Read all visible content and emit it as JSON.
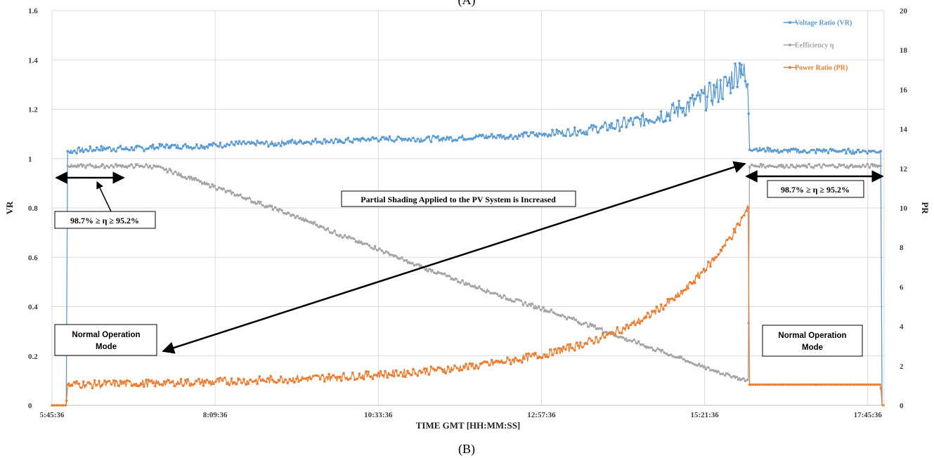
{
  "chart_data": {
    "type": "line",
    "caption_top": "(A)",
    "caption_bottom": "(B)",
    "xlabel": "TIME GMT [HH:MM:SS]",
    "ylabel_left": "VR",
    "ylabel_right": "PR",
    "x_ticks": [
      "5:45:36",
      "8:09:36",
      "10:33:36",
      "12:57:36",
      "15:21:36",
      "17:45:36"
    ],
    "x_tick_hours": [
      5.76,
      8.16,
      10.56,
      12.96,
      15.36,
      17.76
    ],
    "x_range_hours": [
      5.76,
      18.0
    ],
    "y_left_range": [
      0,
      1.6
    ],
    "y_left_ticks": [
      0,
      0.2,
      0.4,
      0.6,
      0.8,
      1,
      1.2,
      1.4,
      1.6
    ],
    "y_right_range": [
      0,
      20
    ],
    "y_right_ticks": [
      0,
      2,
      4,
      6,
      8,
      10,
      12,
      14,
      16,
      18,
      20
    ],
    "grid": true,
    "legend_position": "top-right",
    "series": [
      {
        "name": "Voltage Ratio (VR)",
        "axis": "left",
        "color": "#5b9bd5",
        "points": [
          [
            5.76,
            0
          ],
          [
            5.97,
            0
          ],
          [
            5.99,
            1.03
          ],
          [
            6.5,
            1.04
          ],
          [
            7.0,
            1.04
          ],
          [
            7.5,
            1.05
          ],
          [
            8.0,
            1.05
          ],
          [
            8.5,
            1.06
          ],
          [
            9.0,
            1.06
          ],
          [
            9.5,
            1.07
          ],
          [
            10.0,
            1.07
          ],
          [
            10.5,
            1.08
          ],
          [
            11.0,
            1.08
          ],
          [
            11.5,
            1.08
          ],
          [
            12.0,
            1.09
          ],
          [
            12.5,
            1.09
          ],
          [
            13.0,
            1.1
          ],
          [
            13.5,
            1.11
          ],
          [
            14.0,
            1.13
          ],
          [
            14.5,
            1.16
          ],
          [
            15.0,
            1.2
          ],
          [
            15.4,
            1.25
          ],
          [
            15.7,
            1.3
          ],
          [
            15.9,
            1.38
          ],
          [
            16.0,
            1.25
          ],
          [
            16.02,
            1.04
          ],
          [
            16.5,
            1.03
          ],
          [
            17.0,
            1.03
          ],
          [
            17.5,
            1.03
          ],
          [
            17.95,
            1.03
          ],
          [
            17.97,
            0
          ],
          [
            18.0,
            0
          ]
        ]
      },
      {
        "name": "Eefficiency η",
        "axis": "left",
        "color": "#a5a5a5",
        "points": [
          [
            5.99,
            0.97
          ],
          [
            6.5,
            0.97
          ],
          [
            7.0,
            0.97
          ],
          [
            7.2,
            0.97
          ],
          [
            7.5,
            0.95
          ],
          [
            8.0,
            0.9
          ],
          [
            8.5,
            0.85
          ],
          [
            9.0,
            0.8
          ],
          [
            9.5,
            0.75
          ],
          [
            10.0,
            0.69
          ],
          [
            10.5,
            0.64
          ],
          [
            11.0,
            0.58
          ],
          [
            11.5,
            0.53
          ],
          [
            12.0,
            0.48
          ],
          [
            12.5,
            0.43
          ],
          [
            13.0,
            0.39
          ],
          [
            13.5,
            0.34
          ],
          [
            14.0,
            0.29
          ],
          [
            14.5,
            0.24
          ],
          [
            15.0,
            0.19
          ],
          [
            15.5,
            0.14
          ],
          [
            16.0,
            0.1
          ],
          [
            16.02,
            0.97
          ],
          [
            16.5,
            0.97
          ],
          [
            17.0,
            0.97
          ],
          [
            17.5,
            0.97
          ],
          [
            17.95,
            0.97
          ]
        ]
      },
      {
        "name": "Power Ratio (PR)",
        "axis": "right",
        "color": "#ed7d31",
        "points": [
          [
            5.76,
            0
          ],
          [
            5.97,
            0
          ],
          [
            5.99,
            1.05
          ],
          [
            6.5,
            1.07
          ],
          [
            7.0,
            1.1
          ],
          [
            7.5,
            1.14
          ],
          [
            8.0,
            1.18
          ],
          [
            8.5,
            1.23
          ],
          [
            9.0,
            1.29
          ],
          [
            9.5,
            1.36
          ],
          [
            10.0,
            1.44
          ],
          [
            10.5,
            1.54
          ],
          [
            11.0,
            1.66
          ],
          [
            11.5,
            1.81
          ],
          [
            12.0,
            2.0
          ],
          [
            12.5,
            2.25
          ],
          [
            13.0,
            2.58
          ],
          [
            13.5,
            3.02
          ],
          [
            14.0,
            3.62
          ],
          [
            14.5,
            4.45
          ],
          [
            15.0,
            5.6
          ],
          [
            15.5,
            7.4
          ],
          [
            15.8,
            8.8
          ],
          [
            16.0,
            10.0
          ],
          [
            16.02,
            1.05
          ],
          [
            16.5,
            1.05
          ],
          [
            17.0,
            1.05
          ],
          [
            17.5,
            1.05
          ],
          [
            17.95,
            1.05
          ],
          [
            17.97,
            0
          ],
          [
            18.0,
            0
          ]
        ]
      }
    ],
    "annotations": {
      "shading": "Partial Shading Applied to the PV System is Increased",
      "eff_range_left": "98.7% ≥ η ≥ 95.2%",
      "eff_range_right": "98.7% ≥ η ≥ 95.2%",
      "normal_left_line1": "Normal Operation",
      "normal_left_line2": "Mode",
      "normal_right_line1": "Normal Operation",
      "normal_right_line2": "Mode"
    }
  }
}
